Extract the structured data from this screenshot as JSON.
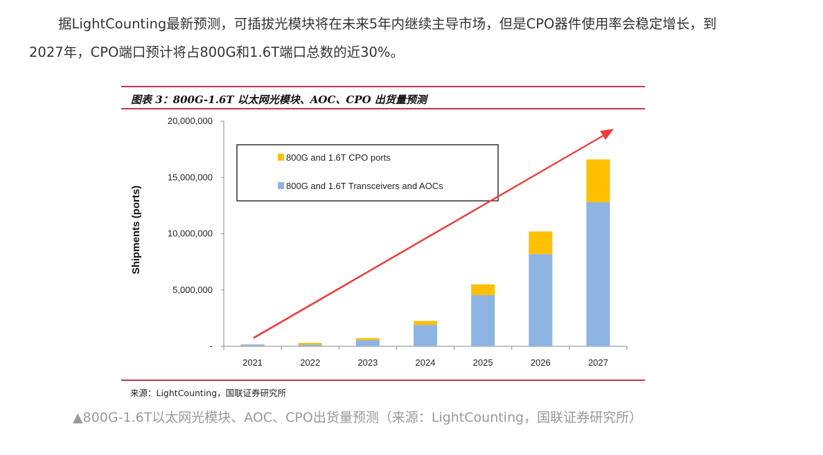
{
  "paragraph": "据LightCounting最新预测，可插拔光模块将在未来5年内继续主导市场，但是CPO器件使用率会稳定增长，到2027年，CPO端口预计将占800G和1.6T端口总数的近30%。",
  "figure": {
    "title": "图表 3：800G-1.6T 以太网光模块、AOC、CPO 出货量预测",
    "source": "来源：LightCounting，国联证券研究所",
    "caption": "▲800G-1.6T以太网光模块、AOC、CPO出货量预测（来源：LightCounting，国联证券研究所）"
  },
  "chart_data": {
    "type": "bar",
    "stacked": true,
    "categories": [
      "2021",
      "2022",
      "2023",
      "2024",
      "2025",
      "2026",
      "2027"
    ],
    "series": [
      {
        "name": "800G and 1.6T Transceivers and AOCs",
        "color": "#8eb4e3",
        "values": [
          150000,
          150000,
          550000,
          1900000,
          4550000,
          8200000,
          12800000
        ]
      },
      {
        "name": "800G and 1.6T CPO ports",
        "color": "#ffc000",
        "values": [
          20000,
          150000,
          170000,
          350000,
          950000,
          2000000,
          3800000
        ]
      }
    ],
    "ylabel": "Shipments (ports)",
    "xlabel": "",
    "ylim": [
      0,
      20000000
    ],
    "yticks": [
      0,
      5000000,
      10000000,
      15000000,
      20000000
    ],
    "ytick_labels": [
      "-",
      "5,000,000",
      "10,000,000",
      "15,000,000",
      "20,000,000"
    ],
    "legend_position": "top-left (inside)",
    "legend_order": [
      1,
      0
    ],
    "annotation": "red upward trend arrow",
    "annotation_color": "#f03c3c",
    "grid": false
  }
}
